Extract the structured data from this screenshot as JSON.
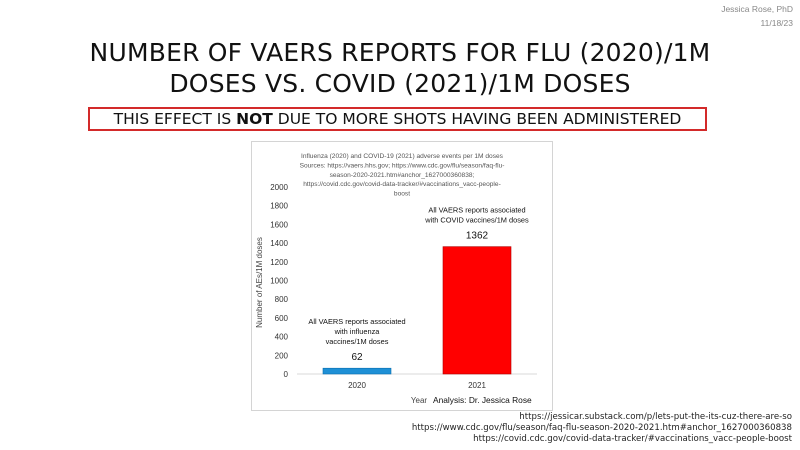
{
  "author": {
    "name": "Jessica Rose, PhD",
    "date": "11/18/23"
  },
  "slide": {
    "title_line1": "NUMBER OF VAERS REPORTS FOR FLU (2020)/1M",
    "title_line2": "DOSES VS. COVID (2021)/1M DOSES",
    "callout_pre": "THIS EFFECT IS ",
    "callout_emph": "NOT",
    "callout_post": " DUE TO MORE SHOTS HAVING BEEN ADMINISTERED",
    "callout_border_color": "#d32a2a"
  },
  "chart_data": {
    "type": "bar",
    "title_lines": [
      "Influenza (2020) and COVID-19 (2021) adverse events per 1M doses",
      "Sources: https://vaers.hhs.gov; https://www.cdc.gov/flu/season/faq-flu-",
      "season-2020-2021.htm#anchor_1627000360838;",
      "https://covid.cdc.gov/covid-data-tracker/#vaccinations_vacc-people-",
      "boost"
    ],
    "categories": [
      "2020",
      "2021"
    ],
    "values": [
      62,
      1362
    ],
    "value_labels": [
      "62",
      "1362"
    ],
    "bar_colors": [
      "#1e90d6",
      "#ff0000"
    ],
    "annotations": [
      [
        "All VAERS reports associated",
        "with influenza",
        "vaccines/1M doses"
      ],
      [
        "All VAERS reports associated",
        "with COVID vaccines/1M doses"
      ]
    ],
    "xlabel": "Year",
    "ylabel": "Number of AEs/1M doses",
    "credit": "Analysis: Dr. Jessica Rose",
    "ylim": [
      0,
      2000
    ],
    "yticks": [
      0,
      200,
      400,
      600,
      800,
      1000,
      1200,
      1400,
      1600,
      1800,
      2000
    ],
    "grid": false
  },
  "sources": [
    "https://jessicar.substack.com/p/lets-put-the-its-cuz-there-are-so",
    "https://www.cdc.gov/flu/season/faq-flu-season-2020-2021.htm#anchor_1627000360838",
    "https://covid.cdc.gov/covid-data-tracker/#vaccinations_vacc-people-boost"
  ]
}
